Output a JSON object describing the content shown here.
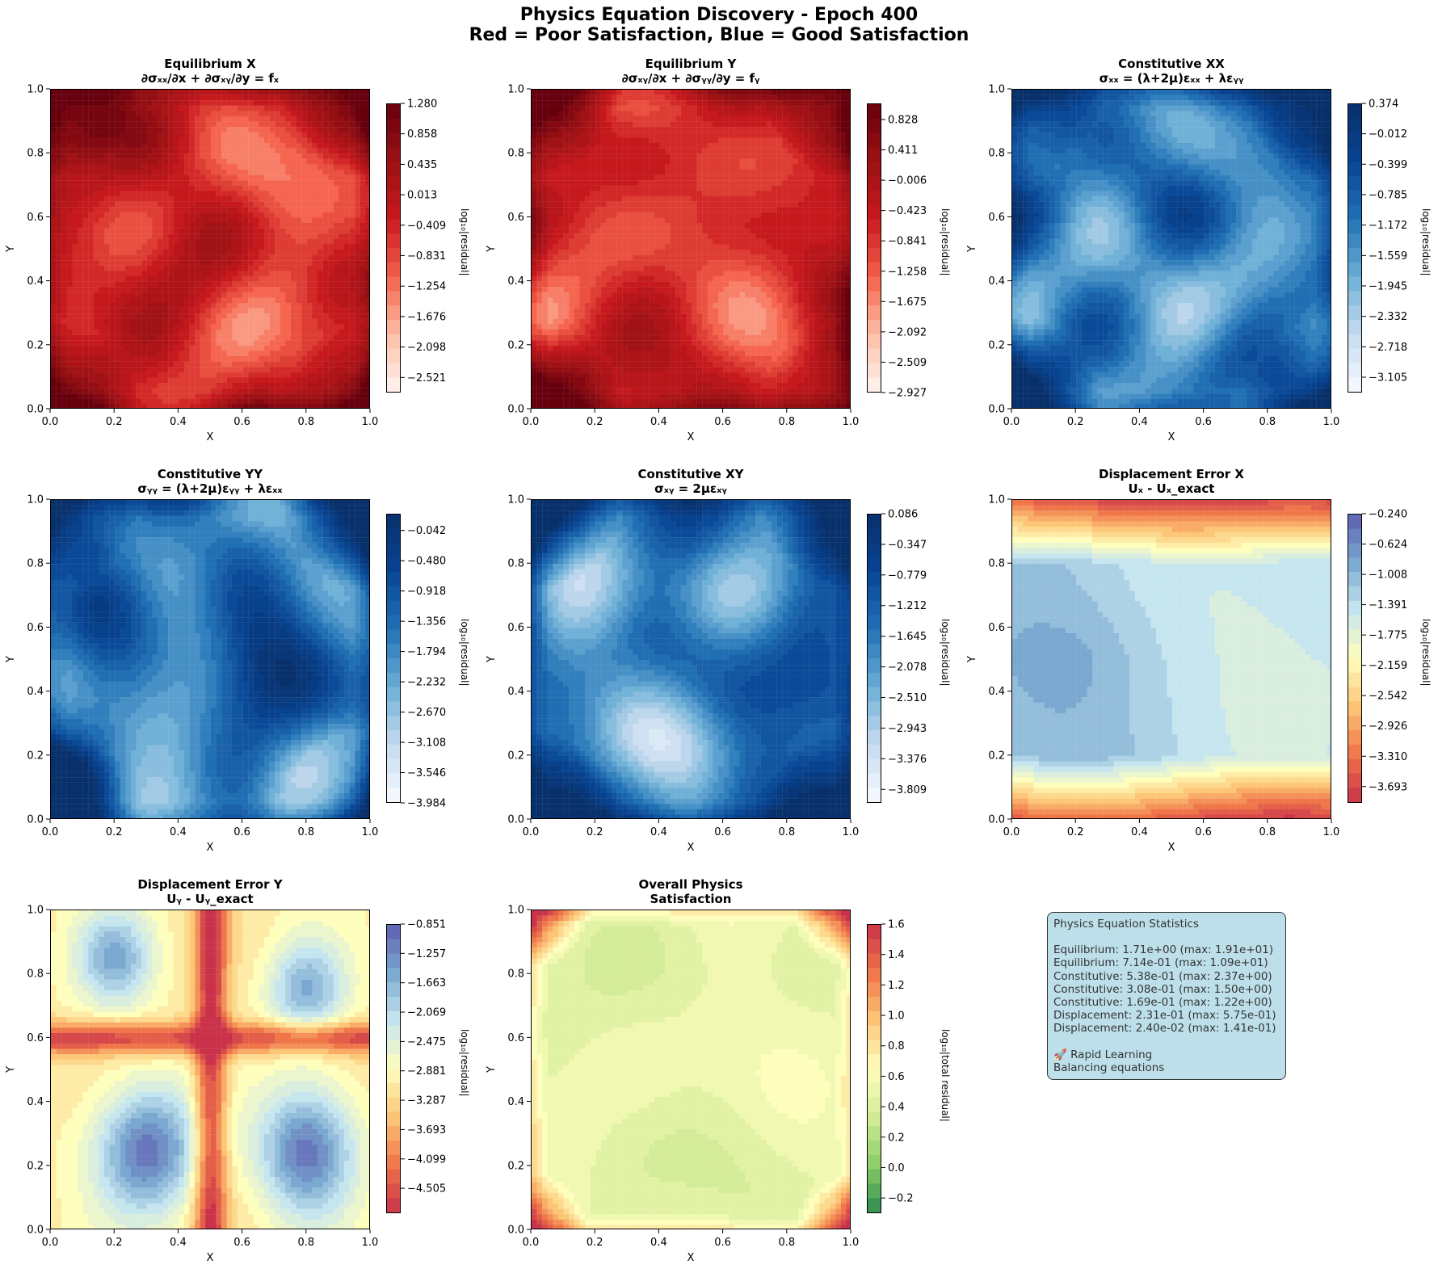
{
  "figure": {
    "title_line1": "Physics Equation Discovery - Epoch 400",
    "title_line2": "Red = Poor Satisfaction, Blue = Good Satisfaction"
  },
  "chart_data": [
    {
      "type": "heatmap",
      "title_line1": "Equilibrium X",
      "title_line2": "∂σₓₓ/∂x + ∂σₓᵧ/∂y = fₓ",
      "xlabel": "X",
      "ylabel": "Y",
      "xlim": [
        0,
        1
      ],
      "ylim": [
        0,
        1
      ],
      "x_ticks": [
        "0.0",
        "0.2",
        "0.4",
        "0.6",
        "0.8",
        "1.0"
      ],
      "y_ticks": [
        "0.0",
        "0.2",
        "0.4",
        "0.6",
        "0.8",
        "1.0"
      ],
      "colorbar_label": "log₁₀|residual|",
      "colorbar_ticks": [
        "1.280",
        "0.858",
        "0.435",
        "0.013",
        "−0.409",
        "−0.831",
        "−1.254",
        "−1.676",
        "−2.098",
        "−2.521"
      ],
      "colormap": "Reds",
      "vmin": -2.73,
      "vmax": 1.28,
      "colors": [
        "#fff5f0",
        "#fdbea5",
        "#f4604a",
        "#c8191e",
        "#9b1114",
        "#67000d"
      ]
    },
    {
      "type": "heatmap",
      "title_line1": "Equilibrium Y",
      "title_line2": "∂σₓᵧ/∂x + ∂σᵧᵧ/∂y = fᵧ",
      "xlabel": "X",
      "ylabel": "Y",
      "xlim": [
        0,
        1
      ],
      "ylim": [
        0,
        1
      ],
      "x_ticks": [
        "0.0",
        "0.2",
        "0.4",
        "0.6",
        "0.8",
        "1.0"
      ],
      "y_ticks": [
        "0.0",
        "0.2",
        "0.4",
        "0.6",
        "0.8",
        "1.0"
      ],
      "colorbar_label": "log₁₀|residual|",
      "colorbar_ticks": [
        "0.828",
        "0.411",
        "−0.006",
        "−0.423",
        "−0.841",
        "−1.258",
        "−1.675",
        "−2.092",
        "−2.509",
        "−2.927"
      ],
      "colormap": "Reds",
      "vmin": -2.927,
      "vmax": 1.05,
      "colors": [
        "#fff5f0",
        "#fdbea5",
        "#f4604a",
        "#c8191e",
        "#9b1114",
        "#67000d"
      ]
    },
    {
      "type": "heatmap",
      "title_line1": "Constitutive XX",
      "title_line2": "σₓₓ = (λ+2μ)εₓₓ + λεᵧᵧ",
      "xlabel": "X",
      "ylabel": "Y",
      "xlim": [
        0,
        1
      ],
      "ylim": [
        0,
        1
      ],
      "x_ticks": [
        "0.0",
        "0.2",
        "0.4",
        "0.6",
        "0.8",
        "1.0"
      ],
      "y_ticks": [
        "0.0",
        "0.2",
        "0.4",
        "0.6",
        "0.8",
        "1.0"
      ],
      "colorbar_label": "log₁₀|residual|",
      "colorbar_ticks": [
        "0.374",
        "−0.012",
        "−0.399",
        "−0.785",
        "−1.172",
        "−1.559",
        "−1.945",
        "−2.332",
        "−2.718",
        "−3.105"
      ],
      "colormap": "Blues",
      "vmin": -3.3,
      "vmax": 0.374,
      "colors": [
        "#f7fbff",
        "#c6dbef",
        "#6baed6",
        "#2171b5",
        "#084594",
        "#08306b"
      ]
    },
    {
      "type": "heatmap",
      "title_line1": "Constitutive YY",
      "title_line2": "σᵧᵧ = (λ+2μ)εᵧᵧ + λεₓₓ",
      "xlabel": "X",
      "ylabel": "Y",
      "xlim": [
        0,
        1
      ],
      "ylim": [
        0,
        1
      ],
      "x_ticks": [
        "0.0",
        "0.2",
        "0.4",
        "0.6",
        "0.8",
        "1.0"
      ],
      "y_ticks": [
        "0.0",
        "0.2",
        "0.4",
        "0.6",
        "0.8",
        "1.0"
      ],
      "colorbar_label": "log₁₀|residual|",
      "colorbar_ticks": [
        "−0.042",
        "−0.480",
        "−0.918",
        "−1.356",
        "−1.794",
        "−2.232",
        "−2.670",
        "−3.108",
        "−3.546",
        "−3.984"
      ],
      "colormap": "Blues",
      "vmin": -3.984,
      "vmax": 0.2,
      "colors": [
        "#f7fbff",
        "#c6dbef",
        "#6baed6",
        "#2171b5",
        "#084594",
        "#08306b"
      ]
    },
    {
      "type": "heatmap",
      "title_line1": "Constitutive XY",
      "title_line2": "σₓᵧ = 2μεₓᵧ",
      "xlabel": "X",
      "ylabel": "Y",
      "xlim": [
        0,
        1
      ],
      "ylim": [
        0,
        1
      ],
      "x_ticks": [
        "0.0",
        "0.2",
        "0.4",
        "0.6",
        "0.8",
        "1.0"
      ],
      "y_ticks": [
        "0.0",
        "0.2",
        "0.4",
        "0.6",
        "0.8",
        "1.0"
      ],
      "colorbar_label": "log₁₀|residual|",
      "colorbar_ticks": [
        "0.086",
        "−0.347",
        "−0.779",
        "−1.212",
        "−1.645",
        "−2.078",
        "−2.510",
        "−2.943",
        "−3.376",
        "−3.809"
      ],
      "colormap": "Blues",
      "vmin": -4.0,
      "vmax": 0.086,
      "colors": [
        "#f7fbff",
        "#c6dbef",
        "#6baed6",
        "#2171b5",
        "#084594",
        "#08306b"
      ]
    },
    {
      "type": "heatmap",
      "title_line1": "Displacement Error X",
      "title_line2": "Uₓ - Uₓ_exact",
      "xlabel": "X",
      "ylabel": "Y",
      "xlim": [
        0,
        1
      ],
      "ylim": [
        0,
        1
      ],
      "x_ticks": [
        "0.0",
        "0.2",
        "0.4",
        "0.6",
        "0.8",
        "1.0"
      ],
      "y_ticks": [
        "0.0",
        "0.2",
        "0.4",
        "0.6",
        "0.8",
        "1.0"
      ],
      "colorbar_label": "log₁₀|residual|",
      "colorbar_ticks": [
        "−0.240",
        "−0.624",
        "−1.008",
        "−1.391",
        "−1.775",
        "−2.159",
        "−2.542",
        "−2.926",
        "−3.310",
        "−3.693"
      ],
      "colormap": "RdYlBu",
      "vmin": -3.9,
      "vmax": -0.24,
      "colors": [
        "#c9324a",
        "#f0764a",
        "#fdc677",
        "#fefebd",
        "#c6e6ef",
        "#7aa8d0",
        "#5e5fb0"
      ]
    },
    {
      "type": "heatmap",
      "title_line1": "Displacement Error Y",
      "title_line2": "Uᵧ - Uᵧ_exact",
      "xlabel": "X",
      "ylabel": "Y",
      "xlim": [
        0,
        1
      ],
      "ylim": [
        0,
        1
      ],
      "x_ticks": [
        "0.0",
        "0.2",
        "0.4",
        "0.6",
        "0.8",
        "1.0"
      ],
      "y_ticks": [
        "0.0",
        "0.2",
        "0.4",
        "0.6",
        "0.8",
        "1.0"
      ],
      "colorbar_label": "log₁₀|residual|",
      "colorbar_ticks": [
        "−0.851",
        "−1.257",
        "−1.663",
        "−2.069",
        "−2.475",
        "−2.881",
        "−3.287",
        "−3.693",
        "−4.099",
        "−4.505"
      ],
      "colormap": "RdYlBu",
      "vmin": -4.85,
      "vmax": -0.851,
      "colors": [
        "#c9324a",
        "#f0764a",
        "#fdc677",
        "#fefebd",
        "#c6e6ef",
        "#7aa8d0",
        "#5e5fb0"
      ]
    },
    {
      "type": "heatmap",
      "title_line1": "Overall Physics",
      "title_line2": "Satisfaction",
      "xlabel": "X",
      "ylabel": "Y",
      "xlim": [
        0,
        1
      ],
      "ylim": [
        0,
        1
      ],
      "x_ticks": [
        "0.0",
        "0.2",
        "0.4",
        "0.6",
        "0.8",
        "1.0"
      ],
      "y_ticks": [
        "0.0",
        "0.2",
        "0.4",
        "0.6",
        "0.8",
        "1.0"
      ],
      "colorbar_label": "log₁₀|total residual|",
      "colorbar_ticks": [
        "1.6",
        "1.4",
        "1.2",
        "1.0",
        "0.8",
        "0.6",
        "0.4",
        "0.2",
        "0.0",
        "−0.2"
      ],
      "colormap": "RdYlGn_r",
      "vmin": -0.3,
      "vmax": 1.6,
      "colors": [
        "#2e8b50",
        "#8ccd68",
        "#d4ec98",
        "#fefebd",
        "#fdc677",
        "#f0764a",
        "#c9324a"
      ]
    }
  ],
  "stats_box": {
    "heading": "Physics Equation Statistics",
    "lines": [
      "Equilibrium: 1.71e+00 (max: 1.91e+01)",
      "Equilibrium: 7.14e-01 (max: 1.09e+01)",
      "Constitutive: 5.38e-01 (max: 2.37e+00)",
      "Constitutive: 3.08e-01 (max: 1.50e+00)",
      "Constitutive: 1.69e-01 (max: 1.22e+00)",
      "Displacement: 2.31e-01 (max: 5.75e-01)",
      "Displacement: 2.40e-02 (max: 1.41e-01)"
    ],
    "status_line1": "🚀 Rapid Learning",
    "status_line2": "Balancing equations",
    "background": "#add8e6"
  }
}
